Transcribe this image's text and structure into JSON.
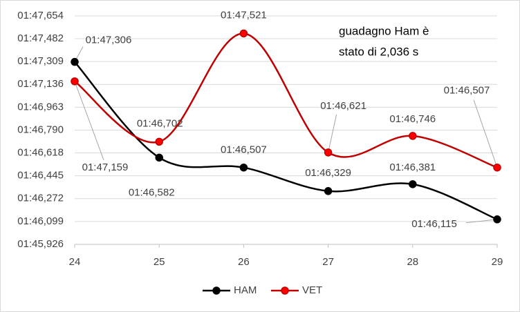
{
  "chart_data": {
    "type": "line",
    "x": [
      24,
      25,
      26,
      27,
      28,
      29
    ],
    "xlim": [
      24,
      29
    ],
    "xticks": [
      24,
      25,
      26,
      27,
      28,
      29
    ],
    "ylim": [
      105.926,
      107.654
    ],
    "yticks": [
      {
        "value": 105.926,
        "label": "01:45,926"
      },
      {
        "value": 106.099,
        "label": "01:46,099"
      },
      {
        "value": 106.272,
        "label": "01:46,272"
      },
      {
        "value": 106.445,
        "label": "01:46,445"
      },
      {
        "value": 106.618,
        "label": "01:46,618"
      },
      {
        "value": 106.79,
        "label": "01:46,790"
      },
      {
        "value": 106.963,
        "label": "01:46,963"
      },
      {
        "value": 107.136,
        "label": "01:47,136"
      },
      {
        "value": 107.309,
        "label": "01:47,309"
      },
      {
        "value": 107.482,
        "label": "01:47,482"
      },
      {
        "value": 107.654,
        "label": "01:47,654"
      }
    ],
    "grid": true,
    "legend": "bottom",
    "annotation": [
      "guadagno Ham è",
      "stato  di 2,036 s"
    ],
    "series": [
      {
        "name": "HAM",
        "color": "#000000",
        "marker_color": "#000000",
        "values": [
          107.306,
          106.582,
          106.507,
          106.329,
          106.381,
          106.115
        ],
        "value_labels": [
          "01:47,306",
          "01:46,582",
          "01:46,507",
          "01:46,329",
          "01:46,381",
          "01:46,115"
        ]
      },
      {
        "name": "VET",
        "color": "#c00000",
        "marker_color": "#ff0000",
        "values": [
          107.159,
          106.702,
          107.521,
          106.621,
          106.746,
          106.507
        ],
        "value_labels": [
          "01:47,159",
          "01:46,702",
          "01:47,521",
          "01:46,621",
          "01:46,746",
          "01:46,507"
        ]
      }
    ]
  }
}
